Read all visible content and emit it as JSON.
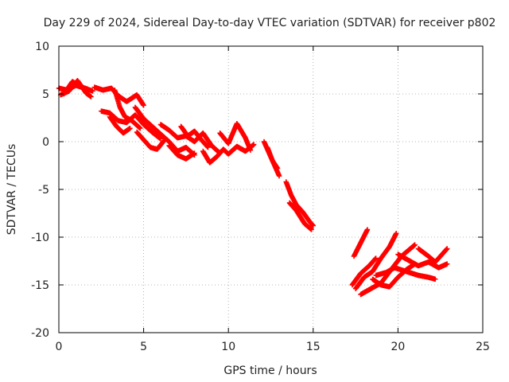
{
  "chart_data": {
    "type": "scatter",
    "title": "Day 229 of 2024, Sidereal Day-to-day VTEC variation (SDTVAR) for receiver p802",
    "xlabel": "GPS time / hours",
    "ylabel": "SDTVAR / TECUs",
    "xlim": [
      0,
      25
    ],
    "ylim": [
      -20,
      10
    ],
    "xticks": [
      0,
      5,
      10,
      15,
      20,
      25
    ],
    "yticks": [
      10,
      5,
      0,
      -5,
      -10,
      -15,
      -20
    ],
    "grid": true,
    "marker": "plus",
    "color": "#ff0000",
    "series": [
      {
        "name": "SDTVAR",
        "tracks": [
          [
            [
              0.0,
              5.6
            ],
            [
              0.5,
              5.4
            ],
            [
              1.0,
              5.9
            ],
            [
              1.5,
              5.6
            ],
            [
              2.0,
              5.3
            ]
          ],
          [
            [
              0.1,
              4.9
            ],
            [
              0.6,
              5.3
            ],
            [
              1.1,
              6.4
            ],
            [
              1.6,
              5.1
            ],
            [
              1.9,
              4.7
            ]
          ],
          [
            [
              0.3,
              5.0
            ],
            [
              0.8,
              6.3
            ],
            [
              1.2,
              5.8
            ],
            [
              1.7,
              5.5
            ]
          ],
          [
            [
              2.1,
              5.7
            ],
            [
              2.6,
              5.4
            ],
            [
              3.1,
              5.6
            ],
            [
              3.5,
              4.8
            ],
            [
              4.0,
              4.2
            ],
            [
              4.6,
              4.9
            ],
            [
              5.0,
              3.8
            ]
          ],
          [
            [
              2.5,
              3.2
            ],
            [
              3.0,
              3.0
            ],
            [
              3.5,
              2.2
            ],
            [
              4.0,
              2.0
            ],
            [
              4.5,
              2.8
            ],
            [
              5.0,
              1.8
            ],
            [
              5.5,
              1.0
            ],
            [
              6.0,
              0.3
            ]
          ],
          [
            [
              3.0,
              2.6
            ],
            [
              3.4,
              1.6
            ],
            [
              3.8,
              0.9
            ],
            [
              4.2,
              1.4
            ]
          ],
          [
            [
              3.3,
              5.4
            ],
            [
              3.6,
              3.6
            ],
            [
              3.9,
              2.6
            ],
            [
              4.3,
              2.2
            ],
            [
              4.8,
              1.4
            ]
          ],
          [
            [
              4.5,
              3.6
            ],
            [
              5.0,
              2.4
            ],
            [
              5.5,
              1.6
            ],
            [
              6.0,
              0.8
            ],
            [
              6.5,
              0.0
            ],
            [
              7.0,
              -1.0
            ],
            [
              7.5,
              -0.6
            ],
            [
              8.0,
              -1.4
            ]
          ],
          [
            [
              4.6,
              1.0
            ],
            [
              5.0,
              0.2
            ],
            [
              5.4,
              -0.6
            ],
            [
              5.8,
              -0.8
            ],
            [
              6.2,
              0.1
            ]
          ],
          [
            [
              6.0,
              1.8
            ],
            [
              6.5,
              1.2
            ],
            [
              7.0,
              0.4
            ],
            [
              7.5,
              0.6
            ],
            [
              8.0,
              0.0
            ],
            [
              8.5,
              0.9
            ],
            [
              9.0,
              -0.4
            ],
            [
              9.5,
              -1.2
            ]
          ],
          [
            [
              6.5,
              -0.4
            ],
            [
              7.0,
              -1.4
            ],
            [
              7.5,
              -1.8
            ],
            [
              8.0,
              -1.2
            ]
          ],
          [
            [
              7.2,
              1.6
            ],
            [
              7.6,
              0.6
            ],
            [
              8.0,
              1.1
            ],
            [
              8.4,
              0.2
            ],
            [
              8.8,
              -0.6
            ]
          ],
          [
            [
              8.5,
              -1.0
            ],
            [
              8.9,
              -2.2
            ],
            [
              9.3,
              -1.6
            ],
            [
              9.7,
              -0.8
            ],
            [
              10.0,
              -1.3
            ],
            [
              10.5,
              -0.5
            ],
            [
              11.0,
              -1.0
            ],
            [
              11.5,
              -0.3
            ]
          ],
          [
            [
              9.5,
              0.9
            ],
            [
              10.0,
              -0.2
            ],
            [
              10.5,
              1.9
            ],
            [
              11.0,
              0.4
            ],
            [
              11.3,
              -0.9
            ]
          ],
          [
            [
              12.1,
              0.0
            ],
            [
              12.4,
              -1.2
            ],
            [
              12.7,
              -2.4
            ],
            [
              13.0,
              -3.6
            ]
          ],
          [
            [
              12.3,
              -0.6
            ],
            [
              12.6,
              -2.0
            ],
            [
              12.9,
              -2.8
            ]
          ],
          [
            [
              13.4,
              -4.2
            ],
            [
              13.7,
              -5.6
            ],
            [
              14.0,
              -6.6
            ],
            [
              14.4,
              -7.4
            ],
            [
              14.8,
              -8.4
            ],
            [
              15.0,
              -8.8
            ]
          ],
          [
            [
              13.6,
              -6.4
            ],
            [
              14.0,
              -7.2
            ],
            [
              14.5,
              -8.6
            ],
            [
              14.9,
              -9.2
            ]
          ],
          [
            [
              17.4,
              -12.0
            ],
            [
              17.8,
              -10.6
            ],
            [
              18.2,
              -9.2
            ]
          ],
          [
            [
              17.3,
              -15.0
            ],
            [
              17.8,
              -13.8
            ],
            [
              18.3,
              -13.0
            ],
            [
              18.7,
              -12.2
            ]
          ],
          [
            [
              17.5,
              -15.4
            ],
            [
              18.0,
              -14.2
            ],
            [
              18.5,
              -13.6
            ],
            [
              19.0,
              -12.2
            ],
            [
              19.5,
              -11.0
            ],
            [
              19.9,
              -9.6
            ]
          ],
          [
            [
              17.8,
              -16.0
            ],
            [
              18.4,
              -15.4
            ],
            [
              19.0,
              -14.8
            ],
            [
              19.6,
              -13.4
            ],
            [
              20.2,
              -12.0
            ],
            [
              20.6,
              -11.4
            ],
            [
              21.0,
              -10.8
            ]
          ],
          [
            [
              18.5,
              -14.4
            ],
            [
              19.0,
              -15.0
            ],
            [
              19.5,
              -15.2
            ],
            [
              20.0,
              -14.2
            ],
            [
              20.5,
              -13.4
            ],
            [
              21.0,
              -12.8
            ]
          ],
          [
            [
              18.7,
              -14.0
            ],
            [
              19.3,
              -13.7
            ],
            [
              19.8,
              -13.2
            ],
            [
              20.5,
              -13.6
            ],
            [
              21.2,
              -14.0
            ],
            [
              21.8,
              -14.2
            ],
            [
              22.2,
              -14.4
            ]
          ],
          [
            [
              20.0,
              -11.8
            ],
            [
              20.6,
              -12.4
            ],
            [
              21.2,
              -13.0
            ],
            [
              21.8,
              -12.6
            ],
            [
              22.4,
              -13.2
            ],
            [
              22.9,
              -12.8
            ]
          ],
          [
            [
              21.2,
              -11.2
            ],
            [
              21.8,
              -12.0
            ],
            [
              22.2,
              -12.6
            ],
            [
              22.6,
              -11.8
            ],
            [
              22.9,
              -11.2
            ]
          ]
        ]
      }
    ]
  }
}
